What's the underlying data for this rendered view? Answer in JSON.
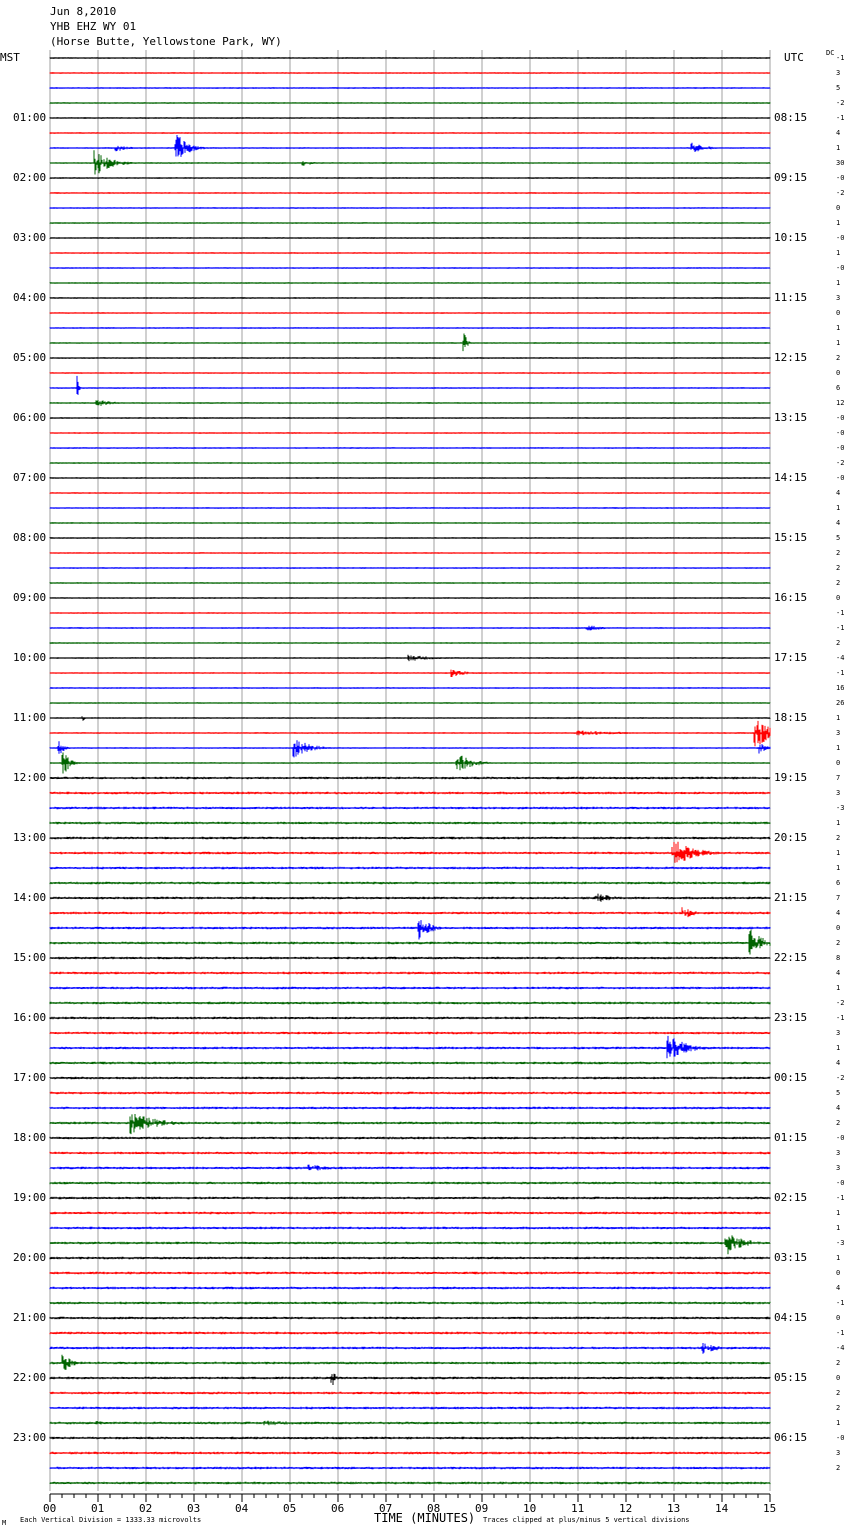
{
  "header": {
    "date": "Jun 8,2010",
    "station": "YHB EHZ WY 01",
    "location": "(Horse Butte, Yellowstone Park, WY)"
  },
  "left_tz": "MST",
  "right_tz": "UTC",
  "dc_label": "DC",
  "footer": {
    "note_left": "Each Vertical Division = 1333.33 microvolts",
    "x_title": "TIME (MINUTES)",
    "note_right": "Traces clipped at plus/minus 5 vertical divisions",
    "mark": "M"
  },
  "colors": {
    "black": "#000000",
    "red": "#ff0000",
    "blue": "#0000ff",
    "green": "#006400",
    "grid": "#a0a0a0"
  },
  "chart_data": {
    "type": "line",
    "x_label": "TIME (MINUTES)",
    "x_ticks": [
      "00",
      "01",
      "02",
      "03",
      "04",
      "05",
      "06",
      "07",
      "08",
      "09",
      "10",
      "11",
      "12",
      "13",
      "14",
      "15"
    ],
    "xlim": [
      0,
      15
    ],
    "trace_count": 96,
    "trace_colors_cycle": [
      "black",
      "red",
      "blue",
      "green"
    ],
    "left_hour_labels": [
      "01:00",
      "02:00",
      "03:00",
      "04:00",
      "05:00",
      "06:00",
      "07:00",
      "08:00",
      "09:00",
      "10:00",
      "11:00",
      "12:00",
      "13:00",
      "14:00",
      "15:00",
      "16:00",
      "17:00",
      "18:00",
      "19:00",
      "20:00",
      "21:00",
      "22:00",
      "23:00"
    ],
    "right_hour_labels": [
      "08:15",
      "09:15",
      "10:15",
      "11:15",
      "12:15",
      "13:15",
      "14:15",
      "15:15",
      "16:15",
      "17:15",
      "18:15",
      "19:15",
      "20:15",
      "21:15",
      "22:15",
      "23:15",
      "00:15",
      "01:15",
      "02:15",
      "03:15",
      "04:15",
      "05:15",
      "06:15"
    ],
    "dc_offsets": [
      "-1",
      "3",
      "5",
      "-2",
      "-1",
      "4",
      "1",
      "30",
      "-0",
      "-2",
      "0",
      "1",
      "-0",
      "1",
      "-0",
      "1",
      "3",
      "0",
      "1",
      "1",
      "2",
      "0",
      "6",
      "12",
      "-0",
      "-0",
      "-0",
      "-2",
      "-0",
      "4",
      "1",
      "4",
      "5",
      "2",
      "2",
      "2",
      "0",
      "-1",
      "-1",
      "2",
      "-4",
      "-1",
      "16",
      "26",
      "1",
      "3",
      "1",
      "0",
      "7",
      "3",
      "-3",
      "1",
      "2",
      "1",
      "1",
      "6",
      "7",
      "4",
      "0",
      "2",
      "8",
      "4",
      "1",
      "-2",
      "-1",
      "3",
      "1",
      "4",
      "-2",
      "5",
      "4",
      "2",
      "-0",
      "3",
      "3",
      "-0",
      "-1",
      "1",
      "1",
      "-3",
      "1",
      "0",
      "4",
      "-1",
      "0",
      "-1",
      "-4",
      "2",
      "0",
      "2",
      "2",
      "1",
      "-0",
      "3",
      "2"
    ],
    "events": [
      {
        "trace": 6,
        "minute": 13.4,
        "amp": 0.4,
        "dur": 0.8
      },
      {
        "trace": 6,
        "minute": 2.65,
        "amp": 1.0,
        "dur": 0.7
      },
      {
        "trace": 6,
        "minute": 1.4,
        "amp": 0.25,
        "dur": 0.8
      },
      {
        "trace": 7,
        "minute": 0.95,
        "amp": 1.0,
        "dur": 0.9
      },
      {
        "trace": 7,
        "minute": 5.3,
        "amp": 0.2,
        "dur": 0.8
      },
      {
        "trace": 19,
        "minute": 8.65,
        "amp": 0.7,
        "dur": 0.15
      },
      {
        "trace": 22,
        "minute": 0.6,
        "amp": 0.9,
        "dur": 0.08
      },
      {
        "trace": 23,
        "minute": 1.0,
        "amp": 0.25,
        "dur": 1.0
      },
      {
        "trace": 38,
        "minute": 11.2,
        "amp": 0.25,
        "dur": 0.9
      },
      {
        "trace": 40,
        "minute": 7.5,
        "amp": 0.25,
        "dur": 1.4
      },
      {
        "trace": 41,
        "minute": 8.4,
        "amp": 0.3,
        "dur": 0.8
      },
      {
        "trace": 44,
        "minute": 0.7,
        "amp": 0.3,
        "dur": 0.1
      },
      {
        "trace": 45,
        "minute": 14.7,
        "amp": 1.0,
        "dur": 1.2
      },
      {
        "trace": 45,
        "minute": 11.0,
        "amp": 0.2,
        "dur": 3.0
      },
      {
        "trace": 46,
        "minute": 5.1,
        "amp": 0.7,
        "dur": 1.0
      },
      {
        "trace": 46,
        "minute": 0.2,
        "amp": 0.5,
        "dur": 0.3
      },
      {
        "trace": 46,
        "minute": 14.8,
        "amp": 0.4,
        "dur": 0.4
      },
      {
        "trace": 47,
        "minute": 8.5,
        "amp": 0.7,
        "dur": 0.9
      },
      {
        "trace": 47,
        "minute": 0.3,
        "amp": 0.8,
        "dur": 0.4
      },
      {
        "trace": 53,
        "minute": 13.0,
        "amp": 1.0,
        "dur": 1.2
      },
      {
        "trace": 56,
        "minute": 11.4,
        "amp": 0.35,
        "dur": 1.0
      },
      {
        "trace": 57,
        "minute": 13.2,
        "amp": 0.5,
        "dur": 0.6
      },
      {
        "trace": 58,
        "minute": 7.7,
        "amp": 1.0,
        "dur": 0.6
      },
      {
        "trace": 59,
        "minute": 14.6,
        "amp": 1.0,
        "dur": 0.8
      },
      {
        "trace": 66,
        "minute": 12.9,
        "amp": 1.0,
        "dur": 1.0
      },
      {
        "trace": 71,
        "minute": 1.7,
        "amp": 0.8,
        "dur": 1.5
      },
      {
        "trace": 74,
        "minute": 5.4,
        "amp": 0.3,
        "dur": 1.2
      },
      {
        "trace": 79,
        "minute": 14.1,
        "amp": 1.0,
        "dur": 0.9
      },
      {
        "trace": 86,
        "minute": 13.6,
        "amp": 0.45,
        "dur": 0.9
      },
      {
        "trace": 87,
        "minute": 0.3,
        "amp": 0.6,
        "dur": 0.5
      },
      {
        "trace": 88,
        "minute": 5.9,
        "amp": 0.5,
        "dur": 0.2
      },
      {
        "trace": 91,
        "minute": 1.0,
        "amp": 0.2,
        "dur": 0.5
      },
      {
        "trace": 91,
        "minute": 4.5,
        "amp": 0.2,
        "dur": 2.5
      }
    ]
  }
}
